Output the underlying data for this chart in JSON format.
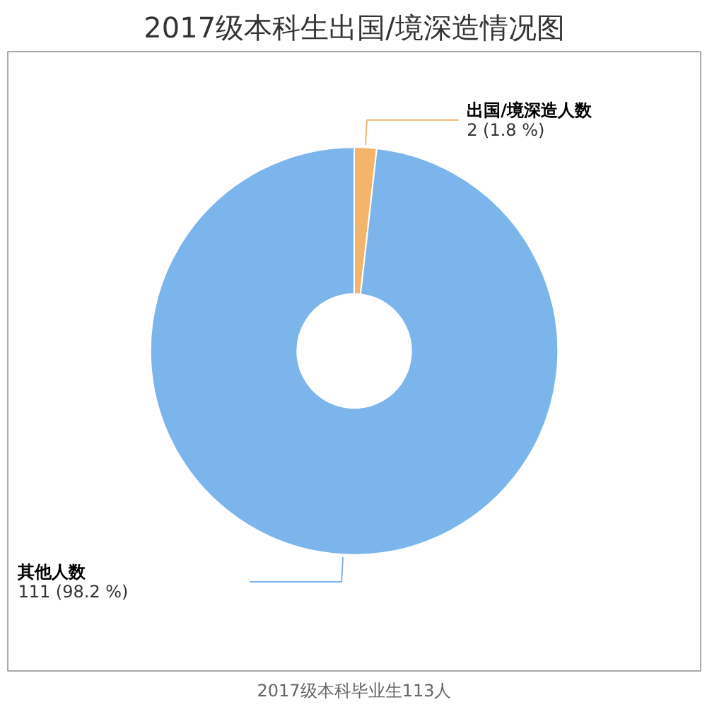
{
  "chart_data": {
    "type": "donut",
    "title": "2017级本科生出国/境深造情况图",
    "categories": [
      "出国/境深造人数",
      "其他人数"
    ],
    "values": [
      2,
      111
    ],
    "colors": [
      "#f3b46c",
      "#7cb5ec"
    ],
    "value_labels": [
      "2 (1.8 %)",
      "111 (98.2 %)"
    ],
    "annotations": [
      "2017级本科毕业生113人"
    ]
  }
}
